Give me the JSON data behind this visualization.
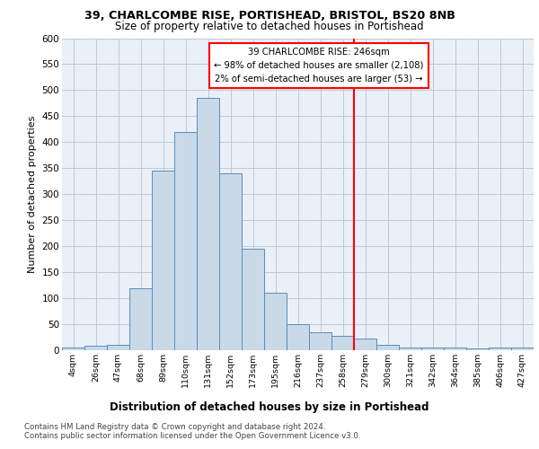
{
  "title1": "39, CHARLCOMBE RISE, PORTISHEAD, BRISTOL, BS20 8NB",
  "title2": "Size of property relative to detached houses in Portishead",
  "xlabel": "Distribution of detached houses by size in Portishead",
  "ylabel": "Number of detached properties",
  "categories": [
    "4sqm",
    "26sqm",
    "47sqm",
    "68sqm",
    "89sqm",
    "110sqm",
    "131sqm",
    "152sqm",
    "173sqm",
    "195sqm",
    "216sqm",
    "237sqm",
    "258sqm",
    "279sqm",
    "300sqm",
    "321sqm",
    "342sqm",
    "364sqm",
    "385sqm",
    "406sqm",
    "427sqm"
  ],
  "values": [
    5,
    8,
    10,
    120,
    345,
    420,
    485,
    340,
    195,
    110,
    50,
    35,
    27,
    22,
    10,
    5,
    5,
    5,
    4,
    5,
    5
  ],
  "bar_color": "#c9d9e8",
  "bar_edge_color": "#5b8db8",
  "grid_color": "#c0c8d8",
  "background_color": "#eaf0f8",
  "vline_x_idx": 12.5,
  "vline_color": "red",
  "annotation_line1": "39 CHARLCOMBE RISE: 246sqm",
  "annotation_line2": "← 98% of detached houses are smaller (2,108)",
  "annotation_line3": "2% of semi-detached houses are larger (53) →",
  "footer1": "Contains HM Land Registry data © Crown copyright and database right 2024.",
  "footer2": "Contains public sector information licensed under the Open Government Licence v3.0.",
  "ylim": [
    0,
    600
  ],
  "yticks": [
    0,
    50,
    100,
    150,
    200,
    250,
    300,
    350,
    400,
    450,
    500,
    550,
    600
  ]
}
